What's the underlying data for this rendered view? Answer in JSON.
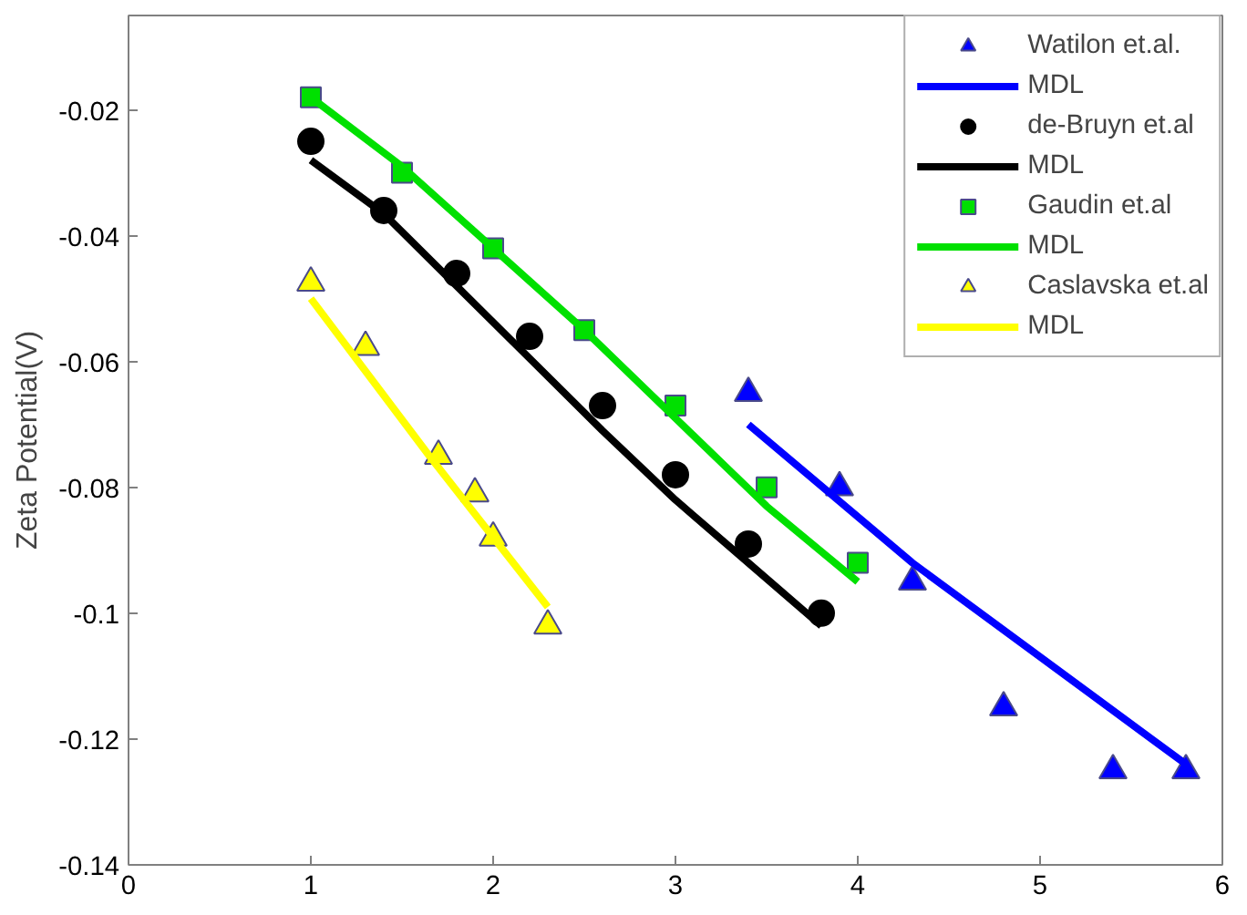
{
  "chart_data": {
    "type": "scatter",
    "ylabel": "Zeta Potential(V)",
    "xlim": [
      0,
      6
    ],
    "ylim": [
      -0.14,
      -0.005
    ],
    "xticks": [
      0,
      1,
      2,
      3,
      4,
      5,
      6
    ],
    "yticks": [
      -0.14,
      -0.12,
      -0.1,
      -0.08,
      -0.06,
      -0.04,
      -0.02
    ],
    "grid": false,
    "legend": "top right",
    "series": [
      {
        "name": "Watilon et.al.",
        "marker": "triangle",
        "color": "#0000ff",
        "x": [
          3.4,
          3.9,
          4.3,
          4.8,
          5.4,
          5.8
        ],
        "values": [
          -0.065,
          -0.08,
          -0.095,
          -0.115,
          -0.125,
          -0.125
        ]
      },
      {
        "name": "MDL",
        "type": "line",
        "color": "#0000ff",
        "x": [
          3.4,
          4.3,
          5.8
        ],
        "values": [
          -0.07,
          -0.092,
          -0.124
        ]
      },
      {
        "name": "de-Bruyn et.al",
        "marker": "circle",
        "color": "#000000",
        "x": [
          1,
          1.4,
          1.8,
          2.2,
          2.6,
          3,
          3.4,
          3.8
        ],
        "values": [
          -0.025,
          -0.036,
          -0.046,
          -0.056,
          -0.067,
          -0.078,
          -0.089,
          -0.1
        ]
      },
      {
        "name": "MDL",
        "type": "line",
        "color": "#000000",
        "x": [
          1,
          1.4,
          1.8,
          2.2,
          2.6,
          3,
          3.4,
          3.8
        ],
        "values": [
          -0.028,
          -0.0365,
          -0.048,
          -0.0595,
          -0.071,
          -0.082,
          -0.092,
          -0.102
        ]
      },
      {
        "name": "Gaudin et.al",
        "marker": "square",
        "color": "#00e000",
        "x": [
          1,
          1.5,
          2,
          2.5,
          3,
          3.5,
          4
        ],
        "values": [
          -0.018,
          -0.03,
          -0.042,
          -0.055,
          -0.067,
          -0.08,
          -0.092
        ]
      },
      {
        "name": "MDL",
        "type": "line",
        "color": "#00e000",
        "x": [
          1,
          1.5,
          2,
          2.5,
          3,
          3.5,
          4
        ],
        "values": [
          -0.018,
          -0.029,
          -0.042,
          -0.055,
          -0.069,
          -0.083,
          -0.095
        ]
      },
      {
        "name": "Caslavska et.al",
        "marker": "triangle",
        "color": "#ffff00",
        "x": [
          1,
          1.3,
          1.7,
          1.9,
          2,
          2.3
        ],
        "values": [
          -0.0475,
          -0.0577,
          -0.075,
          -0.081,
          -0.088,
          -0.102
        ]
      },
      {
        "name": "MDL",
        "type": "line",
        "color": "#ffff00",
        "x": [
          1,
          1.65,
          2.3
        ],
        "values": [
          -0.05,
          -0.075,
          -0.099
        ]
      }
    ]
  }
}
